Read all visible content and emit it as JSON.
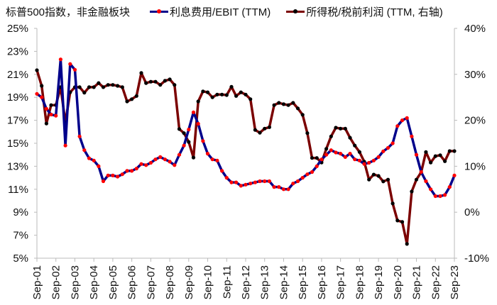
{
  "header": {
    "title": "标普500指数，非金融板块",
    "legend": [
      {
        "label": "利息费用/EBIT (TTM)",
        "line_color": "#00008B",
        "marker_color": "#FF0000"
      },
      {
        "label": "所得税/税前利润 (TTM, 右轴)",
        "line_color": "#7B0000",
        "marker_color": "#000000"
      }
    ]
  },
  "chart_data": {
    "type": "line",
    "title": "标普500指数，非金融板块",
    "xlabel": "",
    "ylabel_left": "利息费用/EBIT (TTM)",
    "ylabel_right": "所得税/税前利润 (TTM, 右轴)",
    "x_tick_labels": [
      "Sep-01",
      "Sep-02",
      "Sep-03",
      "Sep-04",
      "Sep-05",
      "Sep-06",
      "Sep-07",
      "Sep-08",
      "Sep-09",
      "Sep-10",
      "Sep-11",
      "Sep-12",
      "Sep-13",
      "Sep-14",
      "Sep-15",
      "Sep-16",
      "Sep-17",
      "Sep-18",
      "Sep-19",
      "Sep-20",
      "Sep-21",
      "Sep-22",
      "Sep-23"
    ],
    "frequency": "quarterly",
    "ylim_left": [
      5,
      25
    ],
    "yticks_left": [
      "25%",
      "23%",
      "21%",
      "19%",
      "17%",
      "15%",
      "13%",
      "11%",
      "9%",
      "7%",
      "5%"
    ],
    "ylim_right": [
      -10,
      40
    ],
    "yticks_right": [
      "40%",
      "30%",
      "20%",
      "10%",
      "0%",
      "-10%"
    ],
    "negative_tick_color": "#FF0000",
    "grid": false,
    "legend_position": "top",
    "series": [
      {
        "name": "利息费用/EBIT (TTM)",
        "axis": "left",
        "unit": "%",
        "values": [
          19.3,
          19.0,
          18.0,
          17.5,
          17.4,
          22.3,
          14.8,
          21.9,
          21.4,
          15.6,
          14.4,
          13.7,
          13.5,
          13.0,
          11.7,
          12.2,
          12.2,
          12.1,
          12.3,
          12.6,
          12.6,
          12.8,
          13.2,
          13.1,
          13.3,
          13.6,
          13.8,
          13.6,
          13.4,
          13.1,
          14.0,
          14.8,
          16.2,
          17.7,
          16.7,
          15.2,
          14.1,
          13.6,
          13.5,
          12.6,
          12.0,
          11.6,
          11.6,
          11.3,
          11.4,
          11.5,
          11.6,
          11.7,
          11.7,
          11.7,
          11.2,
          11.2,
          11.0,
          11.0,
          11.5,
          11.7,
          12.0,
          12.3,
          12.5,
          13.0,
          13.6,
          14.0,
          14.4,
          14.2,
          14.1,
          13.8,
          14.1,
          13.6,
          13.5,
          13.2,
          13.3,
          13.5,
          13.8,
          14.3,
          14.6,
          15.0,
          16.5,
          17.0,
          17.2,
          15.6,
          14.0,
          12.5,
          11.7,
          11.0,
          10.4,
          10.4,
          10.5,
          11.2,
          12.2
        ]
      },
      {
        "name": "所得税/税前利润 (TTM, 右轴)",
        "axis": "right",
        "unit": "%",
        "values": [
          30.9,
          27.5,
          19.3,
          23.3,
          23.3,
          27.2,
          19.5,
          26.1,
          27.2,
          27.2,
          26.0,
          27.2,
          27.2,
          28.1,
          27.2,
          27.7,
          27.7,
          27.5,
          27.2,
          24.1,
          24.6,
          25.3,
          30.3,
          28.1,
          28.4,
          28.4,
          27.7,
          28.6,
          28.9,
          27.7,
          18.1,
          17.2,
          15.3,
          11.9,
          24.1,
          26.3,
          26.1,
          25.0,
          25.6,
          25.6,
          25.5,
          27.3,
          25.3,
          26.1,
          25.6,
          24.6,
          17.9,
          17.3,
          18.2,
          18.5,
          23.3,
          23.8,
          23.5,
          23.3,
          23.8,
          22.6,
          21.2,
          17.2,
          11.8,
          11.8,
          10.8,
          13.8,
          16.5,
          18.4,
          18.2,
          18.2,
          16.2,
          14.5,
          13.1,
          11.0,
          7.1,
          8.2,
          7.9,
          6.7,
          7.1,
          1.9,
          -1.8,
          -2.1,
          -6.9,
          4.5,
          7.1,
          8.7,
          13.1,
          10.8,
          12.2,
          12.4,
          11.1,
          13.3,
          13.3
        ]
      }
    ]
  }
}
